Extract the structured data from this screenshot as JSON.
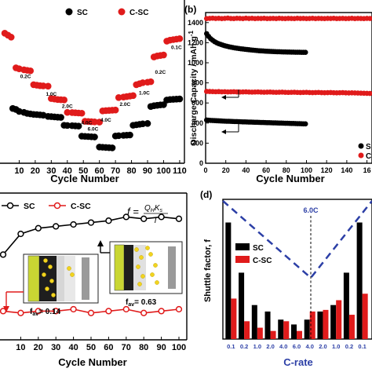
{
  "chart_data": [
    {
      "panel": "a",
      "type": "scatter",
      "xlabel": "Cycle Number",
      "x_ticks": [
        "10",
        "20",
        "30",
        "40",
        "50",
        "60",
        "70",
        "80",
        "90",
        "100",
        "110"
      ],
      "legend": [
        "SC",
        "C-SC"
      ],
      "rate_labels": [
        "0.2C",
        "1.0C",
        "2.0C",
        "4.0C",
        "6.0C",
        "4.0C",
        "2.0C",
        "1.0C",
        "0.2C",
        "0.1C"
      ],
      "series": [
        {
          "name": "SC",
          "color": "#000000",
          "x": [
            6,
            8,
            10,
            13,
            15,
            17,
            19,
            21,
            23,
            25,
            28,
            30,
            32,
            34,
            36,
            38,
            40,
            43,
            45,
            47,
            49,
            51,
            53,
            55,
            57,
            60,
            62,
            64,
            66,
            68,
            70,
            72,
            75,
            77,
            79,
            81,
            83,
            85,
            87,
            90,
            92,
            94,
            96,
            98,
            100,
            102,
            104,
            106,
            108,
            110
          ],
          "y": [
            1040,
            1030,
            1010,
            1000,
            990,
            985,
            980,
            978,
            975,
            972,
            960,
            958,
            955,
            952,
            950,
            870,
            868,
            866,
            864,
            862,
            760,
            758,
            756,
            754,
            752,
            650,
            648,
            646,
            644,
            642,
            762,
            765,
            768,
            770,
            772,
            870,
            875,
            880,
            885,
            888,
            1060,
            1068,
            1072,
            1076,
            1078,
            1125,
            1130,
            1132,
            1134,
            1136
          ]
        },
        {
          "name": "C-SC",
          "color": "#e01b1b",
          "x": [
            1,
            3,
            5,
            8,
            10,
            13,
            15,
            17,
            19,
            21,
            23,
            25,
            28,
            30,
            32,
            34,
            36,
            38,
            40,
            43,
            45,
            47,
            49,
            51,
            53,
            55,
            57,
            60,
            62,
            64,
            66,
            68,
            70,
            72,
            75,
            77,
            79,
            81,
            83,
            85,
            87,
            90,
            92,
            94,
            96,
            98,
            100,
            102,
            104,
            106,
            108,
            110
          ],
          "y": [
            1800,
            1780,
            1760,
            1450,
            1440,
            1430,
            1425,
            1420,
            1280,
            1275,
            1270,
            1268,
            1265,
            1140,
            1135,
            1130,
            1128,
            1126,
            1000,
            998,
            996,
            994,
            992,
            910,
            908,
            906,
            904,
            902,
            1015,
            1018,
            1020,
            1022,
            1024,
            1150,
            1155,
            1160,
            1165,
            1170,
            1280,
            1290,
            1300,
            1305,
            1310,
            1560,
            1570,
            1575,
            1580,
            1720,
            1730,
            1735,
            1740,
            1745
          ]
        }
      ]
    },
    {
      "panel": "b",
      "type": "scatter",
      "xlabel": "Cycle Number",
      "ylabel": "Discharge Capacity / mAh g",
      "ylabel_sup": "-1",
      "x_ticks": [
        "0",
        "20",
        "40",
        "60",
        "80",
        "100",
        "120",
        "140",
        "16"
      ],
      "x_range": [
        0,
        165
      ],
      "y_ticks": [
        "0",
        "200",
        "400",
        "600",
        "800",
        "1000",
        "1200",
        "1400"
      ],
      "y_range": [
        0,
        1500
      ],
      "legend": [
        "S",
        "C"
      ],
      "series": [
        {
          "name": "SC (capacity)",
          "color": "#000000",
          "x": [
            1,
            3,
            5,
            7,
            9,
            11,
            13,
            15,
            17,
            19,
            21,
            23,
            25,
            27,
            29,
            31,
            33,
            35,
            37,
            39,
            41,
            43,
            45,
            47,
            49,
            51,
            53,
            55,
            57,
            59,
            61,
            63,
            65,
            67,
            69,
            71,
            73,
            75,
            77,
            79,
            81,
            83,
            85,
            87,
            89,
            91,
            93,
            95,
            97,
            99
          ],
          "y": [
            1290,
            1262,
            1240,
            1224,
            1210,
            1199,
            1190,
            1183,
            1176,
            1170,
            1165,
            1160,
            1156,
            1152,
            1148,
            1145,
            1142,
            1139,
            1137,
            1134,
            1132,
            1130,
            1128,
            1126,
            1124,
            1122,
            1120,
            1119,
            1118,
            1116,
            1115,
            1114,
            1113,
            1112,
            1111,
            1110,
            1110,
            1109,
            1108,
            1108,
            1107,
            1107,
            1106,
            1106,
            1105,
            1105,
            1105,
            1104,
            1104,
            1104
          ]
        },
        {
          "name": "C-SC (capacity)",
          "color": "#e01b1b",
          "x": [
            1,
            4,
            7,
            10,
            13,
            16,
            19,
            22,
            25,
            28,
            31,
            34,
            37,
            40,
            43,
            46,
            49,
            52,
            55,
            58,
            61,
            64,
            67,
            70,
            73,
            76,
            79,
            82,
            85,
            88,
            91,
            94,
            97,
            100,
            103,
            106,
            109,
            112,
            115,
            118,
            121,
            124,
            127,
            130,
            133,
            136,
            139,
            142,
            145,
            148,
            151,
            154,
            157,
            160,
            163
          ],
          "y": [
            1440,
            1442,
            1444,
            1441,
            1443,
            1440,
            1442,
            1445,
            1441,
            1440,
            1443,
            1442,
            1440,
            1444,
            1441,
            1443,
            1440,
            1442,
            1441,
            1443,
            1440,
            1441,
            1442,
            1440,
            1443,
            1441,
            1440,
            1442,
            1441,
            1440,
            1443,
            1441,
            1442,
            1440,
            1441,
            1443,
            1440,
            1442,
            1441,
            1440,
            1442,
            1441,
            1443,
            1440,
            1441,
            1442,
            1440,
            1441,
            1443,
            1440,
            1442,
            1441,
            1440,
            1442,
            1441
          ]
        },
        {
          "name": "SC (lower)",
          "color": "#000000",
          "x": [
            1,
            3,
            5,
            7,
            9,
            11,
            13,
            15,
            17,
            19,
            21,
            23,
            25,
            27,
            29,
            31,
            33,
            35,
            37,
            39,
            41,
            43,
            45,
            47,
            49,
            51,
            53,
            55,
            57,
            59,
            61,
            63,
            65,
            67,
            69,
            71,
            73,
            75,
            77,
            79,
            81,
            83,
            85,
            87,
            89,
            91,
            93,
            95,
            97,
            99
          ],
          "y": [
            430,
            428,
            426,
            425,
            424,
            423,
            422,
            421,
            420,
            419,
            418,
            418,
            417,
            416,
            415,
            415,
            414,
            413,
            412,
            412,
            411,
            410,
            410,
            409,
            408,
            408,
            407,
            406,
            406,
            405,
            404,
            404,
            403,
            402,
            402,
            401,
            400,
            400,
            399,
            398,
            398,
            397,
            396,
            396,
            395,
            394,
            394,
            393,
            392,
            392
          ]
        },
        {
          "name": "C-SC (lower)",
          "color": "#e01b1b",
          "x": [
            1,
            4,
            7,
            10,
            13,
            16,
            19,
            22,
            25,
            28,
            31,
            34,
            37,
            40,
            43,
            46,
            49,
            52,
            55,
            58,
            61,
            64,
            67,
            70,
            73,
            76,
            79,
            82,
            85,
            88,
            91,
            94,
            97,
            100,
            103,
            106,
            109,
            112,
            115,
            118,
            121,
            124,
            127,
            130,
            133,
            136,
            139,
            142,
            145,
            148,
            151,
            154,
            157,
            160,
            163
          ],
          "y": [
            715,
            714,
            713,
            712,
            713,
            711,
            712,
            710,
            711,
            712,
            710,
            709,
            710,
            711,
            709,
            708,
            709,
            710,
            708,
            707,
            708,
            709,
            707,
            706,
            707,
            708,
            706,
            705,
            706,
            707,
            705,
            704,
            705,
            706,
            704,
            703,
            704,
            705,
            703,
            702,
            703,
            704,
            702,
            701,
            702,
            703,
            701,
            700,
            701,
            700,
            699,
            698,
            697,
            696,
            695
          ]
        }
      ]
    },
    {
      "panel": "c",
      "type": "line",
      "xlabel": "Cycle Number",
      "x_ticks": [
        "10",
        "20",
        "30",
        "40",
        "50",
        "60",
        "70",
        "80",
        "90",
        "100"
      ],
      "legend": [
        "SC",
        "C-SC"
      ],
      "formula": {
        "lhs": "f =",
        "numerator": "Q",
        "numerator_sub": "H",
        "numerator_k": "K",
        "numerator_k_sub": "s",
        "denominator": "I"
      },
      "inset_left_label": "f",
      "inset_left_sub": "av",
      "inset_left_value": "= 0.14",
      "inset_right_label": "f",
      "inset_right_sub": "av",
      "inset_right_value": "= 0.63",
      "series": [
        {
          "name": "SC",
          "color": "#000000",
          "x": [
            0,
            10,
            20,
            30,
            40,
            50,
            60,
            70,
            80,
            90,
            100
          ],
          "y": [
            0.44,
            0.55,
            0.58,
            0.59,
            0.6,
            0.61,
            0.62,
            0.64,
            0.63,
            0.64,
            0.63
          ]
        },
        {
          "name": "C-SC",
          "color": "#e01b1b",
          "x": [
            0,
            10,
            20,
            30,
            40,
            50,
            60,
            70,
            80,
            90,
            100
          ],
          "y": [
            0.14,
            0.13,
            0.14,
            0.14,
            0.15,
            0.13,
            0.14,
            0.15,
            0.13,
            0.14,
            0.15
          ]
        }
      ]
    },
    {
      "panel": "d",
      "type": "bar",
      "ylabel": "Shuttle factor, f",
      "xlabel": "C-rate",
      "categories": [
        "0.1",
        "0.2",
        "1.0",
        "2.0",
        "4.0",
        "6.0",
        "4.0",
        "2.0",
        "1.0",
        "0.2",
        "0.1"
      ],
      "legend": [
        "SC",
        "C-SC"
      ],
      "annotation": "6.0C",
      "series": [
        {
          "name": "SC",
          "color": "#000000",
          "values": [
            0.72,
            0.41,
            0.21,
            0.17,
            0.12,
            0.09,
            0.12,
            0.17,
            0.21,
            0.41,
            0.72
          ]
        },
        {
          "name": "C-SC",
          "color": "#e01b1b",
          "values": [
            0.25,
            0.11,
            0.07,
            0.05,
            0.11,
            0.05,
            0.17,
            0.18,
            0.24,
            0.15,
            0.28
          ]
        }
      ],
      "colors": {
        "accent_dashed": "#2c3fa6"
      }
    }
  ],
  "panel_labels": {
    "b": "(b)",
    "d": "(d)"
  }
}
